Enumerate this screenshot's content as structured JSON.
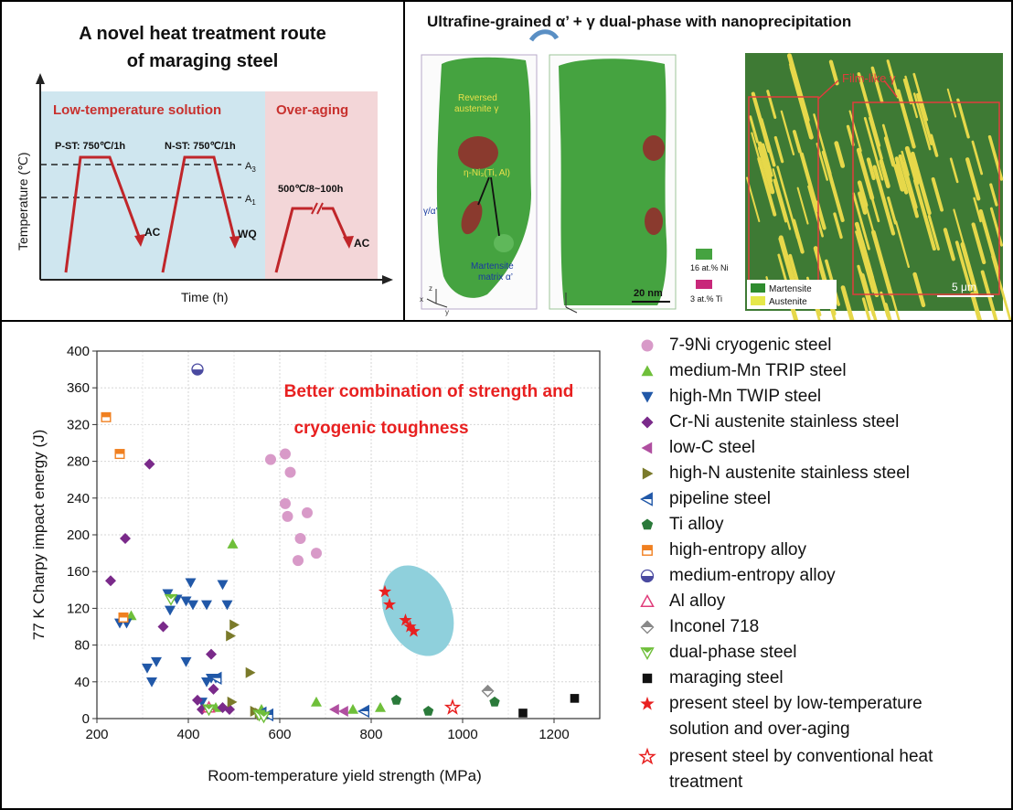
{
  "panel_a": {
    "title_line1": "A novel heat treatment route",
    "title_line2": "of maraging steel",
    "zone_low": "Low-temperature solution",
    "zone_over": "Over-aging",
    "pst": "P-ST: 750℃/1h",
    "nst": "N-ST: 750℃/1h",
    "a3": "A",
    "a3_sub": "3",
    "a1": "A",
    "a1_sub": "1",
    "aging": "500℃/8~100h",
    "ac1": "AC",
    "wq": "WQ",
    "ac2": "AC",
    "ylabel": "Temperature (℃)",
    "xlabel": "Time (h)",
    "colors": {
      "low_bg": "#cfe6ef",
      "over_bg": "#f3d6d8",
      "label_red": "#c8312e",
      "curve": "#c0262a"
    }
  },
  "panel_b": {
    "title": "Ultrafine-grained α’ + γ dual-phase with nanoprecipitation",
    "reversed": "Reversed",
    "austenite_gamma": "austenite γ",
    "eta": "η-Ni₃(Ti, Al)",
    "gamma_alpha": "γ/α’",
    "martensite_matrix_1": "Martensite",
    "martensite_matrix_2": "matrix α’",
    "scale_20nm": "20 nm",
    "ni_label": "16 at.% Ni",
    "ti_label": "3 at.% Ti",
    "film_like": "Film-like γ",
    "legend_martensite": "Martensite",
    "legend_austenite": "Austenite",
    "scale_5um": "5 μm",
    "axis_z": "z",
    "axis_y": "y",
    "axis_x": "x",
    "colors": {
      "green": "#3f9e3a",
      "precip": "#8a3a2e",
      "yellow": "#e6d84a",
      "film_red": "#e03c3c"
    }
  },
  "chart_data": {
    "type": "scatter",
    "title": "Better combination of strength and cryogenic toughness",
    "title_line1": "Better combination of strength and",
    "title_line2": "cryogenic toughness",
    "xlabel": "Room-temperature yield strength (MPa)",
    "ylabel": "77 K Charpy impact energy (J)",
    "xlim": [
      200,
      1300
    ],
    "ylim": [
      0,
      400
    ],
    "x_ticks": [
      "200",
      "400",
      "600",
      "800",
      "1000",
      "1200"
    ],
    "y_ticks": [
      "0",
      "40",
      "80",
      "120",
      "160",
      "200",
      "240",
      "280",
      "320",
      "360",
      "400"
    ],
    "grid": true,
    "legend_placement": "right",
    "series": [
      {
        "name": "7-9Ni cryogenic steel",
        "marker": "circle",
        "color": "#d89ac8",
        "points": [
          [
            580,
            282
          ],
          [
            612,
            288
          ],
          [
            623,
            268
          ],
          [
            617,
            220
          ],
          [
            660,
            224
          ],
          [
            645,
            196
          ],
          [
            640,
            172
          ],
          [
            680,
            180
          ],
          [
            612,
            234
          ]
        ]
      },
      {
        "name": "medium-Mn TRIP steel",
        "marker": "tri-up",
        "color": "#6fbf3a",
        "points": [
          [
            497,
            190
          ],
          [
            275,
            112
          ],
          [
            680,
            18
          ],
          [
            760,
            10
          ],
          [
            820,
            12
          ],
          [
            460,
            12
          ],
          [
            560,
            10
          ]
        ]
      },
      {
        "name": "high-Mn TWIP steel",
        "marker": "tri-down",
        "color": "#2158a8",
        "points": [
          [
            250,
            104
          ],
          [
            265,
            104
          ],
          [
            355,
            136
          ],
          [
            360,
            118
          ],
          [
            375,
            130
          ],
          [
            395,
            128
          ],
          [
            405,
            148
          ],
          [
            410,
            124
          ],
          [
            440,
            124
          ],
          [
            475,
            146
          ],
          [
            485,
            124
          ],
          [
            310,
            55
          ],
          [
            330,
            62
          ],
          [
            395,
            62
          ],
          [
            320,
            40
          ],
          [
            440,
            40
          ],
          [
            450,
            44
          ],
          [
            460,
            44
          ],
          [
            430,
            18
          ]
        ]
      },
      {
        "name": "Cr-Ni austenite stainless steel",
        "marker": "diamond",
        "color": "#7a2a8a",
        "points": [
          [
            230,
            150
          ],
          [
            262,
            196
          ],
          [
            315,
            277
          ],
          [
            345,
            100
          ],
          [
            450,
            70
          ],
          [
            420,
            20
          ],
          [
            430,
            10
          ],
          [
            475,
            12
          ],
          [
            490,
            10
          ],
          [
            455,
            32
          ]
        ]
      },
      {
        "name": "low-C steel",
        "marker": "tri-left",
        "color": "#b04fa0",
        "points": [
          [
            720,
            10
          ],
          [
            740,
            8
          ]
        ]
      },
      {
        "name": "high-N austenite stainless steel",
        "marker": "tri-right",
        "color": "#7a7a2a",
        "points": [
          [
            500,
            102
          ],
          [
            492,
            90
          ],
          [
            535,
            50
          ],
          [
            495,
            18
          ],
          [
            545,
            8
          ],
          [
            555,
            6
          ],
          [
            560,
            4
          ]
        ]
      },
      {
        "name": "pipeline steel",
        "marker": "tri-left-open",
        "color": "#2158a8",
        "points": [
          [
            462,
            44
          ],
          [
            560,
            6
          ],
          [
            575,
            4
          ],
          [
            785,
            8
          ]
        ]
      },
      {
        "name": "Ti alloy",
        "marker": "pentagon",
        "color": "#2a7a3a",
        "points": [
          [
            855,
            20
          ],
          [
            925,
            8
          ],
          [
            1070,
            18
          ]
        ]
      },
      {
        "name": "high-entropy alloy",
        "marker": "square-half",
        "color": "#f08020",
        "points": [
          [
            220,
            328
          ],
          [
            250,
            288
          ],
          [
            258,
            110
          ]
        ]
      },
      {
        "name": "medium-entropy alloy",
        "marker": "circle-half",
        "color": "#4a4aa0",
        "points": [
          [
            420,
            380
          ]
        ]
      },
      {
        "name": "Al alloy",
        "marker": "tri-up-open",
        "color": "#e03c7a",
        "points": [
          [
            445,
            12
          ]
        ]
      },
      {
        "name": "Inconel 718",
        "marker": "diamond-half",
        "color": "#888888",
        "points": [
          [
            1055,
            30
          ]
        ]
      },
      {
        "name": "dual-phase steel",
        "marker": "tri-down-half",
        "color": "#6fbf3a",
        "points": [
          [
            362,
            130
          ],
          [
            445,
            10
          ],
          [
            555,
            4
          ],
          [
            565,
            2
          ]
        ]
      },
      {
        "name": "maraging steel",
        "marker": "square",
        "color": "#111111",
        "points": [
          [
            1132,
            6
          ],
          [
            1245,
            22
          ]
        ]
      },
      {
        "name": "present steel by low-temperature solution and over-aging",
        "marker": "star",
        "color": "#e82020",
        "points": [
          [
            830,
            138
          ],
          [
            840,
            124
          ],
          [
            875,
            107
          ],
          [
            885,
            100
          ],
          [
            893,
            95
          ]
        ]
      },
      {
        "name": "present steel by conventional heat treatment",
        "marker": "star-open",
        "color": "#e82020",
        "points": [
          [
            978,
            12
          ]
        ]
      }
    ],
    "legend_labels": [
      [
        "7-9Ni cryogenic steel"
      ],
      [
        "medium-Mn TRIP steel"
      ],
      [
        "high-Mn TWIP steel"
      ],
      [
        "Cr-Ni austenite stainless steel"
      ],
      [
        "low-C steel"
      ],
      [
        "high-N austenite stainless steel"
      ],
      [
        "pipeline steel"
      ],
      [
        "Ti alloy"
      ],
      [
        "high-entropy alloy"
      ],
      [
        "medium-entropy alloy"
      ],
      [
        "Al alloy"
      ],
      [
        "Inconel 718"
      ],
      [
        "dual-phase steel"
      ],
      [
        "maraging steel"
      ],
      [
        "present steel by low-temperature",
        "solution and over-aging"
      ],
      [
        "present steel by conventional heat",
        "treatment"
      ]
    ],
    "highlight_color": "#8fd0dc",
    "title_color": "#e82020"
  }
}
